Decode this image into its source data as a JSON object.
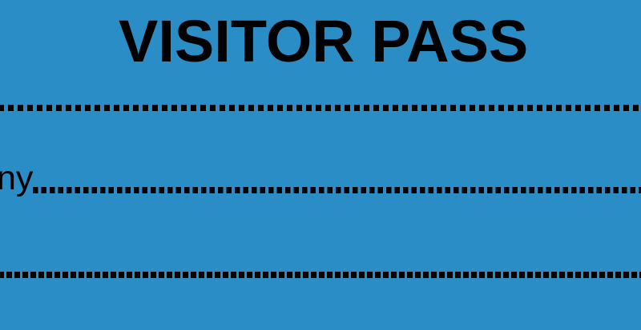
{
  "colors": {
    "background": "#2b8dc6",
    "ink": "#000000"
  },
  "card": {
    "title": "VISITOR PASS",
    "label_fragment": "ny",
    "fields": [
      {
        "name": "blank-line-1",
        "label": "",
        "leader_dots": true
      },
      {
        "name": "blank-line-2",
        "label": "ny",
        "leader_dots": true
      },
      {
        "name": "blank-line-3",
        "label": "",
        "leader_dots": true
      }
    ]
  }
}
